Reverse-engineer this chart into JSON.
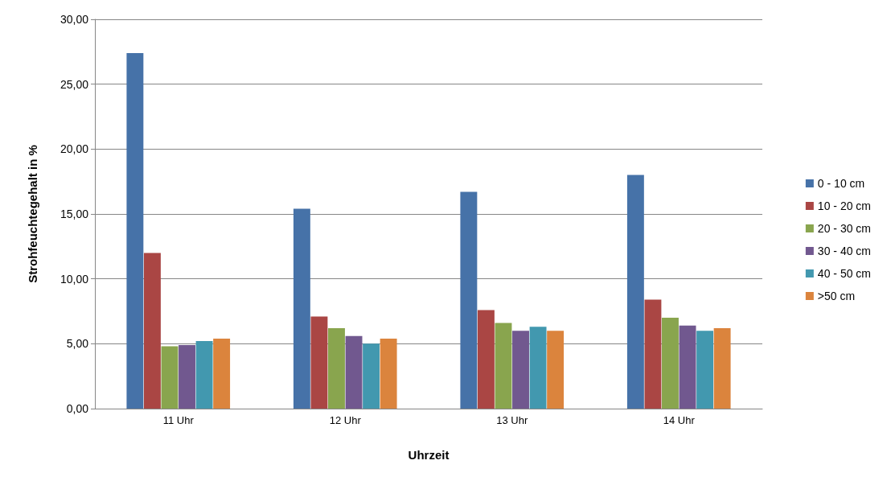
{
  "chart_data": {
    "type": "bar",
    "xlabel": "Uhrzeit",
    "ylabel": "Strohfeuchtegehalt in %",
    "categories": [
      "11 Uhr",
      "12 Uhr",
      "13 Uhr",
      "14 Uhr"
    ],
    "series": [
      {
        "name": "0 - 10 cm",
        "color": "#4672a8",
        "values": [
          27.4,
          15.4,
          16.7,
          18.0
        ]
      },
      {
        "name": "10 - 20 cm",
        "color": "#aa4644",
        "values": [
          12.0,
          7.1,
          7.6,
          8.4
        ]
      },
      {
        "name": "20 - 30 cm",
        "color": "#89a54e",
        "values": [
          4.8,
          6.2,
          6.6,
          7.0
        ]
      },
      {
        "name": "30 - 40 cm",
        "color": "#71588f",
        "values": [
          4.9,
          5.6,
          6.0,
          6.4
        ]
      },
      {
        "name": "40 - 50 cm",
        "color": "#4298af",
        "values": [
          5.2,
          5.0,
          6.3,
          6.0
        ]
      },
      {
        "name": ">50 cm",
        "color": "#db843d",
        "values": [
          5.4,
          5.4,
          6.0,
          6.2
        ]
      }
    ],
    "ylim": [
      0,
      30
    ],
    "yticks": [
      {
        "value": 0,
        "label": "0,00"
      },
      {
        "value": 5,
        "label": "5,00"
      },
      {
        "value": 10,
        "label": "10,00"
      },
      {
        "value": 15,
        "label": "15,00"
      },
      {
        "value": 20,
        "label": "20,00"
      },
      {
        "value": 25,
        "label": "25,00"
      },
      {
        "value": 30,
        "label": "30,00"
      }
    ],
    "grid": "y",
    "legend": "right"
  }
}
